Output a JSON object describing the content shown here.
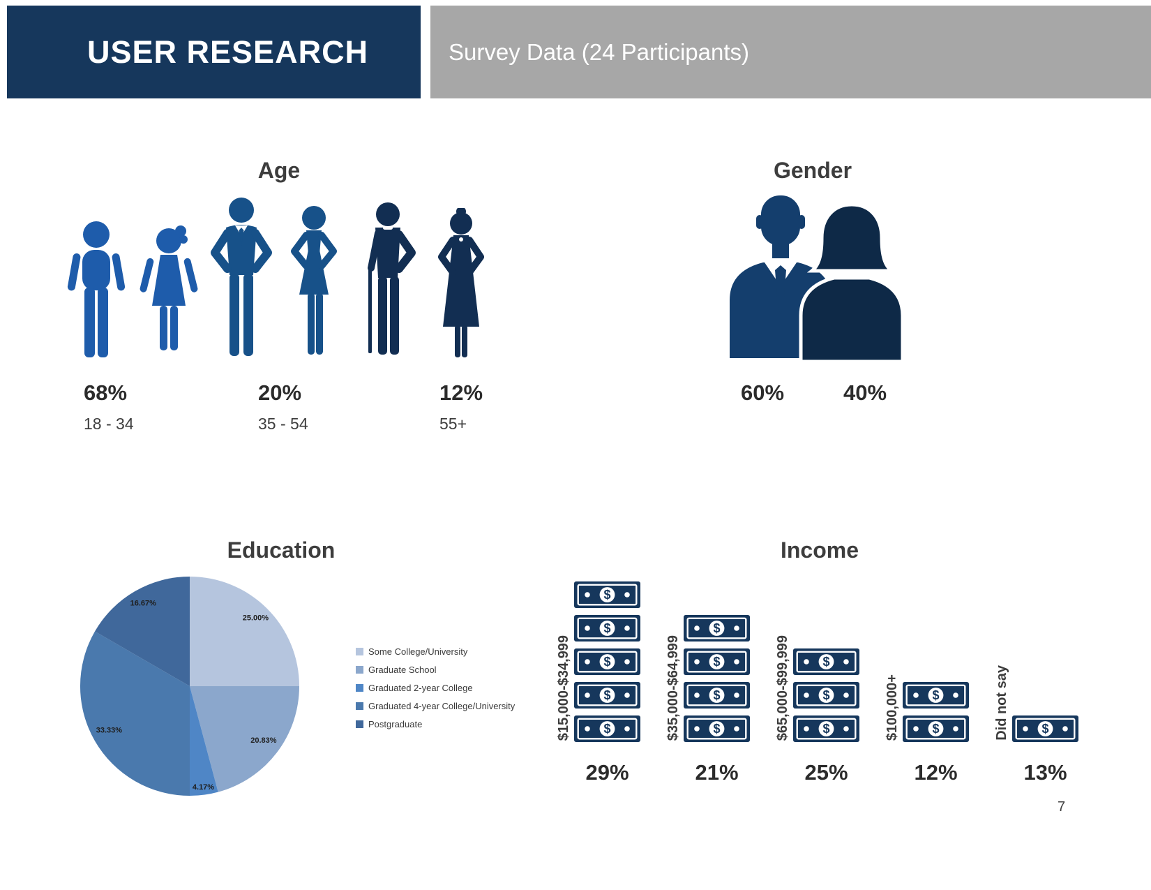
{
  "header": {
    "title": "USER RESEARCH",
    "subtitle": "Survey Data (24 Participants)"
  },
  "age": {
    "title": "Age",
    "groups": [
      {
        "percent": "68%",
        "range": "18 - 34"
      },
      {
        "percent": "20%",
        "range": "35 - 54"
      },
      {
        "percent": "12%",
        "range": "55+"
      }
    ]
  },
  "gender": {
    "title": "Gender",
    "groups": [
      {
        "label": "Male",
        "percent": "60%"
      },
      {
        "label": "Female",
        "percent": "40%"
      }
    ]
  },
  "education": {
    "title": "Education"
  },
  "income": {
    "title": "Income",
    "categories": [
      {
        "label": "$15,000-$34,999",
        "percent": "29%",
        "bills": 5
      },
      {
        "label": "$35,000-$64,999",
        "percent": "21%",
        "bills": 4
      },
      {
        "label": "$65,000-$99,999",
        "percent": "25%",
        "bills": 3
      },
      {
        "label": "$100,000+",
        "percent": "12%",
        "bills": 2
      },
      {
        "label": "Did not say",
        "percent": "13%",
        "bills": 1
      }
    ]
  },
  "page_number": "7",
  "colors": {
    "navy": "#16375c",
    "header_gray": "#a7a7a7",
    "kid_blue": "#1e5cab",
    "adult_blue": "#175189",
    "elderly_navy": "#122e52",
    "male_navy": "#143e6d",
    "female_navy": "#0e2947",
    "bill_navy": "#16375c",
    "text_dark": "#3d3d3d"
  },
  "chart_data": [
    {
      "type": "bar",
      "style": "pictogram-people",
      "title": "Age",
      "categories": [
        "18 - 34",
        "35 - 54",
        "55+"
      ],
      "values": [
        68,
        20,
        12
      ],
      "unit": "%"
    },
    {
      "type": "bar",
      "style": "pictogram-people",
      "title": "Gender",
      "categories": [
        "Male",
        "Female"
      ],
      "values": [
        60,
        40
      ],
      "unit": "%"
    },
    {
      "type": "pie",
      "title": "Education",
      "labels": [
        "Some College/University",
        "Graduate School",
        "Graduated 2-year College",
        "Graduated 4-year College/University",
        "Postgraduate"
      ],
      "values": [
        25.0,
        20.83,
        4.17,
        33.33,
        16.67
      ],
      "data_labels": [
        "25.00%",
        "20.83%",
        "4.17%",
        "33.33%",
        "16.67%"
      ],
      "colors": [
        "#b5c5de",
        "#8ba7cc",
        "#4f86c6",
        "#4a79ad",
        "#40689b"
      ],
      "start_angle_deg": 0,
      "direction": "clockwise",
      "legend_position": "right"
    },
    {
      "type": "bar",
      "style": "pictogram-bills",
      "title": "Income",
      "categories": [
        "$15,000-$34,999",
        "$35,000-$64,999",
        "$65,000-$99,999",
        "$100,000+",
        "Did not say"
      ],
      "values": [
        29,
        21,
        25,
        12,
        13
      ],
      "bill_icons_per_category": [
        5,
        4,
        3,
        2,
        1
      ],
      "unit": "%"
    }
  ]
}
